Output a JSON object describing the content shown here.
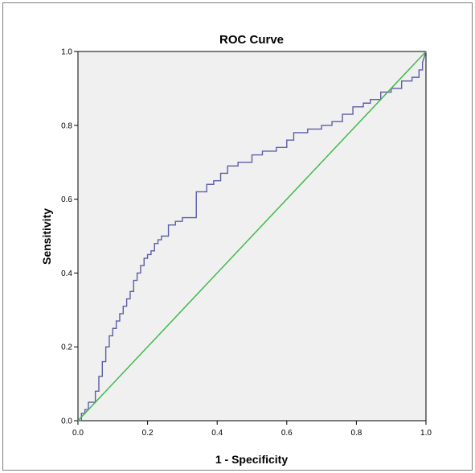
{
  "chart_data": {
    "type": "line",
    "title": "ROC Curve",
    "xlabel": "1 - Specificity",
    "ylabel": "Sensitivity",
    "xlim": [
      0.0,
      1.0
    ],
    "ylim": [
      0.0,
      1.0
    ],
    "x_ticks": [
      "0.0",
      "0.2",
      "0.4",
      "0.6",
      "0.8",
      "1.0"
    ],
    "y_ticks": [
      "0.0",
      "0.2",
      "0.4",
      "0.6",
      "0.8",
      "1.0"
    ],
    "grid": false,
    "colors": {
      "curve": "#5b5ea6",
      "reference": "#3fba4a",
      "plot_background": "#f0f0f0"
    },
    "series": [
      {
        "style": "step",
        "x": [
          0.0,
          0.01,
          0.01,
          0.02,
          0.02,
          0.03,
          0.03,
          0.05,
          0.05,
          0.06,
          0.06,
          0.07,
          0.07,
          0.08,
          0.08,
          0.09,
          0.09,
          0.1,
          0.1,
          0.11,
          0.11,
          0.12,
          0.12,
          0.13,
          0.13,
          0.14,
          0.14,
          0.15,
          0.15,
          0.16,
          0.16,
          0.17,
          0.17,
          0.18,
          0.18,
          0.19,
          0.19,
          0.2,
          0.2,
          0.21,
          0.21,
          0.22,
          0.22,
          0.23,
          0.23,
          0.24,
          0.24,
          0.26,
          0.26,
          0.28,
          0.28,
          0.3,
          0.3,
          0.34,
          0.34,
          0.37,
          0.37,
          0.39,
          0.39,
          0.41,
          0.41,
          0.43,
          0.43,
          0.46,
          0.46,
          0.5,
          0.5,
          0.53,
          0.53,
          0.57,
          0.57,
          0.6,
          0.6,
          0.62,
          0.62,
          0.66,
          0.66,
          0.7,
          0.7,
          0.73,
          0.73,
          0.76,
          0.76,
          0.79,
          0.79,
          0.82,
          0.82,
          0.84,
          0.84,
          0.87,
          0.87,
          0.9,
          0.9,
          0.93,
          0.93,
          0.96,
          0.96,
          0.98,
          0.98,
          0.99,
          0.99,
          1.0
        ],
        "y": [
          0.0,
          0.0,
          0.02,
          0.02,
          0.03,
          0.03,
          0.05,
          0.05,
          0.08,
          0.08,
          0.12,
          0.12,
          0.16,
          0.16,
          0.2,
          0.2,
          0.23,
          0.23,
          0.25,
          0.25,
          0.27,
          0.27,
          0.29,
          0.29,
          0.31,
          0.31,
          0.33,
          0.33,
          0.35,
          0.35,
          0.38,
          0.38,
          0.4,
          0.4,
          0.42,
          0.42,
          0.44,
          0.44,
          0.45,
          0.45,
          0.46,
          0.46,
          0.48,
          0.48,
          0.49,
          0.49,
          0.5,
          0.5,
          0.53,
          0.53,
          0.54,
          0.54,
          0.55,
          0.55,
          0.62,
          0.62,
          0.64,
          0.64,
          0.65,
          0.65,
          0.67,
          0.67,
          0.69,
          0.69,
          0.7,
          0.7,
          0.72,
          0.72,
          0.73,
          0.73,
          0.74,
          0.74,
          0.76,
          0.76,
          0.78,
          0.78,
          0.79,
          0.79,
          0.8,
          0.8,
          0.81,
          0.81,
          0.83,
          0.83,
          0.85,
          0.85,
          0.86,
          0.86,
          0.87,
          0.87,
          0.89,
          0.89,
          0.9,
          0.9,
          0.92,
          0.92,
          0.93,
          0.93,
          0.95,
          0.95,
          0.97,
          1.0
        ]
      },
      {
        "style": "line",
        "x": [
          0.0,
          1.0
        ],
        "y": [
          0.0,
          1.0
        ]
      }
    ]
  }
}
